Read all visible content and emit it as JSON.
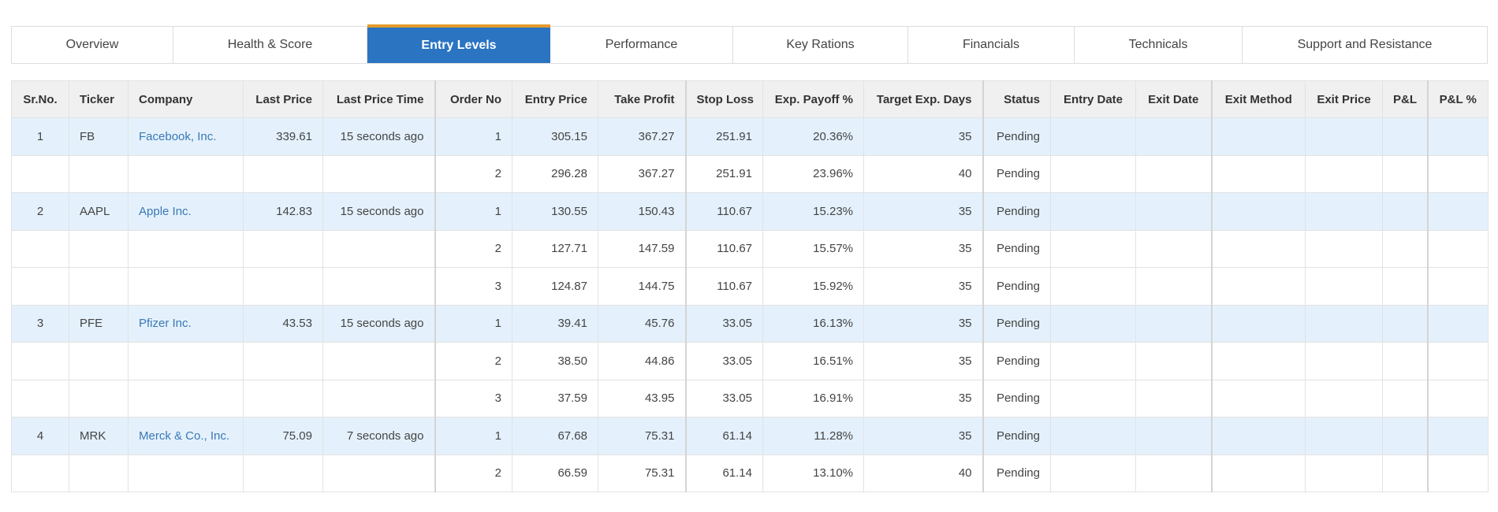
{
  "tabs": [
    {
      "label": "Overview",
      "active": false
    },
    {
      "label": "Health & Score",
      "active": false
    },
    {
      "label": "Entry Levels",
      "active": true
    },
    {
      "label": "Performance",
      "active": false
    },
    {
      "label": "Key Rations",
      "active": false
    },
    {
      "label": "Financials",
      "active": false
    },
    {
      "label": "Technicals",
      "active": false
    },
    {
      "label": "Support and Resistance",
      "active": false
    }
  ],
  "table": {
    "headers": [
      "Sr.No.",
      "Ticker",
      "Company",
      "Last Price",
      "Last Price Time",
      "Order No",
      "Entry Price",
      "Take Profit",
      "Stop Loss",
      "Exp. Payoff %",
      "Target Exp. Days",
      "Status",
      "Entry Date",
      "Exit Date",
      "Exit Method",
      "Exit Price",
      "P&L",
      "P&L %"
    ],
    "rows": [
      {
        "sr": "1",
        "ticker": "FB",
        "company": "Facebook, Inc.",
        "last_price": "339.61",
        "last_price_time": "15 seconds ago",
        "order_no": "1",
        "entry_price": "305.15",
        "take_profit": "367.27",
        "stop_loss": "251.91",
        "exp_payoff": "20.36%",
        "target_days": "35",
        "status": "Pending"
      },
      {
        "sr": "",
        "ticker": "",
        "company": "",
        "last_price": "",
        "last_price_time": "",
        "order_no": "2",
        "entry_price": "296.28",
        "take_profit": "367.27",
        "stop_loss": "251.91",
        "exp_payoff": "23.96%",
        "target_days": "40",
        "status": "Pending"
      },
      {
        "sr": "2",
        "ticker": "AAPL",
        "company": "Apple Inc.",
        "last_price": "142.83",
        "last_price_time": "15 seconds ago",
        "order_no": "1",
        "entry_price": "130.55",
        "take_profit": "150.43",
        "stop_loss": "110.67",
        "exp_payoff": "15.23%",
        "target_days": "35",
        "status": "Pending"
      },
      {
        "sr": "",
        "ticker": "",
        "company": "",
        "last_price": "",
        "last_price_time": "",
        "order_no": "2",
        "entry_price": "127.71",
        "take_profit": "147.59",
        "stop_loss": "110.67",
        "exp_payoff": "15.57%",
        "target_days": "35",
        "status": "Pending"
      },
      {
        "sr": "",
        "ticker": "",
        "company": "",
        "last_price": "",
        "last_price_time": "",
        "order_no": "3",
        "entry_price": "124.87",
        "take_profit": "144.75",
        "stop_loss": "110.67",
        "exp_payoff": "15.92%",
        "target_days": "35",
        "status": "Pending"
      },
      {
        "sr": "3",
        "ticker": "PFE",
        "company": "Pfizer Inc.",
        "last_price": "43.53",
        "last_price_time": "15 seconds ago",
        "order_no": "1",
        "entry_price": "39.41",
        "take_profit": "45.76",
        "stop_loss": "33.05",
        "exp_payoff": "16.13%",
        "target_days": "35",
        "status": "Pending"
      },
      {
        "sr": "",
        "ticker": "",
        "company": "",
        "last_price": "",
        "last_price_time": "",
        "order_no": "2",
        "entry_price": "38.50",
        "take_profit": "44.86",
        "stop_loss": "33.05",
        "exp_payoff": "16.51%",
        "target_days": "35",
        "status": "Pending"
      },
      {
        "sr": "",
        "ticker": "",
        "company": "",
        "last_price": "",
        "last_price_time": "",
        "order_no": "3",
        "entry_price": "37.59",
        "take_profit": "43.95",
        "stop_loss": "33.05",
        "exp_payoff": "16.91%",
        "target_days": "35",
        "status": "Pending"
      },
      {
        "sr": "4",
        "ticker": "MRK",
        "company": "Merck & Co., Inc.",
        "last_price": "75.09",
        "last_price_time": "7 seconds ago",
        "order_no": "1",
        "entry_price": "67.68",
        "take_profit": "75.31",
        "stop_loss": "61.14",
        "exp_payoff": "11.28%",
        "target_days": "35",
        "status": "Pending"
      },
      {
        "sr": "",
        "ticker": "",
        "company": "",
        "last_price": "",
        "last_price_time": "",
        "order_no": "2",
        "entry_price": "66.59",
        "take_profit": "75.31",
        "stop_loss": "61.14",
        "exp_payoff": "13.10%",
        "target_days": "40",
        "status": "Pending"
      }
    ]
  },
  "colors": {
    "accent": "#2a74c2",
    "tab_highlight": "#e39a2c",
    "row_highlight": "#e4f1fc",
    "link": "#3a78b5"
  }
}
